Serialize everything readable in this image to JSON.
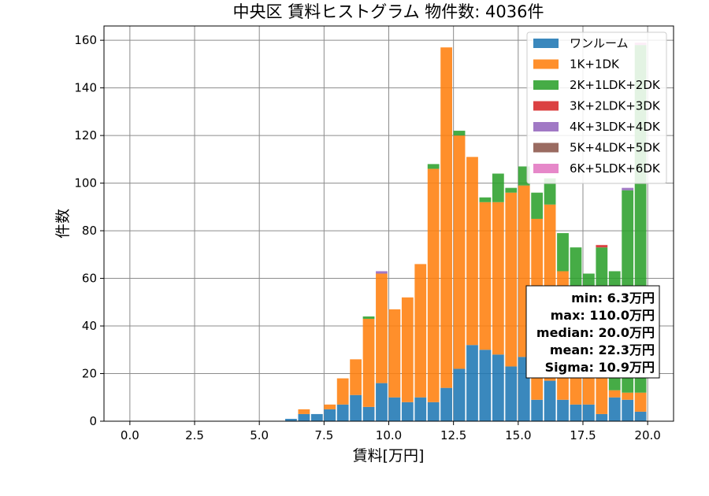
{
  "chart_data": {
    "type": "bar",
    "stacked": true,
    "title": "中央区 賃料ヒストグラム 物件数: 4036件",
    "xlabel": "賃料[万円]",
    "ylabel": "件数",
    "xlim": [
      -1,
      21
    ],
    "ylim": [
      0,
      166
    ],
    "grid": true,
    "legend_position": "top-right",
    "xticks": [
      "0.0",
      "2.5",
      "5.0",
      "7.5",
      "10.0",
      "12.5",
      "15.0",
      "17.5",
      "20.0"
    ],
    "yticks": [
      "0",
      "20",
      "40",
      "60",
      "80",
      "100",
      "120",
      "140",
      "160"
    ],
    "bin_width": 0.5,
    "x": [
      6.0,
      6.5,
      7.0,
      7.5,
      8.0,
      8.5,
      9.0,
      9.5,
      10.0,
      10.5,
      11.0,
      11.5,
      12.0,
      12.5,
      13.0,
      13.5,
      14.0,
      14.5,
      15.0,
      15.5,
      16.0,
      16.5,
      17.0,
      17.5,
      18.0,
      18.5,
      19.0,
      19.5
    ],
    "series": [
      {
        "name": "ワンルーム",
        "color": "#1f77b4",
        "values": [
          1,
          3,
          3,
          5,
          7,
          11,
          6,
          16,
          10,
          8,
          10,
          8,
          14,
          22,
          32,
          30,
          28,
          23,
          27,
          9,
          17,
          9,
          7,
          7,
          3,
          10,
          9,
          4
        ]
      },
      {
        "name": "1K+1DK",
        "color": "#ff7f0e",
        "values": [
          0,
          2,
          0,
          2,
          11,
          15,
          37,
          46,
          37,
          44,
          56,
          98,
          143,
          98,
          79,
          62,
          64,
          73,
          72,
          76,
          74,
          54,
          50,
          39,
          49,
          3,
          3,
          8
        ]
      },
      {
        "name": "2K+1LDK+2DK",
        "color": "#2ca02c",
        "values": [
          0,
          0,
          0,
          0,
          0,
          0,
          1,
          0,
          0,
          0,
          0,
          2,
          0,
          2,
          0,
          2,
          12,
          2,
          8,
          11,
          11,
          16,
          16,
          16,
          21,
          50,
          85,
          146
        ]
      },
      {
        "name": "3K+2LDK+3DK",
        "color": "#d62728",
        "values": [
          0,
          0,
          0,
          0,
          0,
          0,
          0,
          0,
          0,
          0,
          0,
          0,
          0,
          0,
          0,
          0,
          0,
          0,
          0,
          0,
          0,
          0,
          0,
          0,
          1,
          0,
          0,
          0
        ]
      },
      {
        "name": "4K+3LDK+4DK",
        "color": "#9467bd",
        "values": [
          0,
          0,
          0,
          0,
          0,
          0,
          0,
          1,
          0,
          0,
          0,
          0,
          0,
          0,
          0,
          0,
          0,
          0,
          0,
          0,
          0,
          0,
          0,
          0,
          0,
          0,
          1,
          0
        ]
      },
      {
        "name": "5K+4LDK+5DK",
        "color": "#8c564b",
        "values": [
          0,
          0,
          0,
          0,
          0,
          0,
          0,
          0,
          0,
          0,
          0,
          0,
          0,
          0,
          0,
          0,
          0,
          0,
          0,
          0,
          0,
          0,
          0,
          0,
          0,
          0,
          0,
          0
        ]
      },
      {
        "name": "6K+5LDK+6DK",
        "color": "#e377c2",
        "values": [
          0,
          0,
          0,
          0,
          0,
          0,
          0,
          0,
          0,
          0,
          0,
          0,
          0,
          0,
          0,
          0,
          0,
          0,
          0,
          0,
          0,
          0,
          0,
          0,
          0,
          0,
          0,
          1
        ]
      }
    ],
    "stats_lines": [
      "min: 6.3万円",
      "max: 110.0万円",
      "median: 20.0万円",
      "mean: 22.3万円",
      "Sigma: 10.9万円"
    ]
  }
}
